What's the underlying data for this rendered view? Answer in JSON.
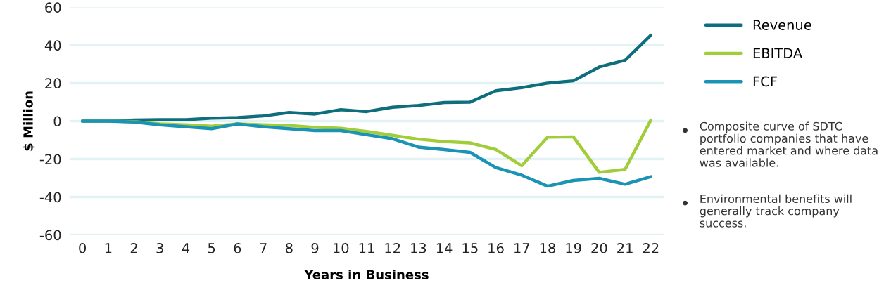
{
  "chart_data": {
    "type": "line",
    "xlabel": "Years in Business",
    "ylabel": "$ Million",
    "categories": [
      "0",
      "1",
      "2",
      "3",
      "4",
      "5",
      "6",
      "7",
      "8",
      "9",
      "10",
      "11",
      "12",
      "13",
      "14",
      "15",
      "16",
      "17",
      "18",
      "19",
      "20",
      "21",
      "22"
    ],
    "series": [
      {
        "name": "Revenue",
        "color": "#0e6e7c",
        "values": [
          0,
          0,
          0.5,
          0.7,
          0.7,
          1.5,
          1.8,
          2.7,
          4.5,
          3.7,
          6,
          5,
          7.3,
          8.2,
          9.8,
          10,
          16,
          17.6,
          20,
          21.2,
          28.5,
          32,
          45.3
        ]
      },
      {
        "name": "EBITDA",
        "color": "#a2cd3a",
        "values": [
          0,
          0,
          -0.3,
          -1.5,
          -2,
          -2.7,
          -1.5,
          -2,
          -2.3,
          -3.3,
          -3.8,
          -5.5,
          -7.5,
          -9.5,
          -10.8,
          -11.5,
          -15,
          -23.5,
          -8.5,
          -8.3,
          -27,
          -25.5,
          0.5
        ]
      },
      {
        "name": "FCF",
        "color": "#1a93b5",
        "values": [
          0,
          0,
          -0.5,
          -2,
          -3,
          -4,
          -1.5,
          -3,
          -4,
          -5,
          -5,
          -7.2,
          -9.3,
          -13.7,
          -15,
          -16.5,
          -24.5,
          -28.5,
          -34.3,
          -31.3,
          -30.2,
          -33.3,
          -29.3
        ]
      }
    ],
    "ylim": [
      -60,
      60
    ],
    "yticks": [
      -60,
      -40,
      -20,
      0,
      20,
      40,
      60
    ],
    "grid": "y",
    "legend": "right",
    "marker": "none",
    "line_style": "solid",
    "annotations": [
      "Composite curve of SDTC portfolio companies that have entered market and where data was available.",
      "Environmental benefits will generally track company success."
    ]
  }
}
